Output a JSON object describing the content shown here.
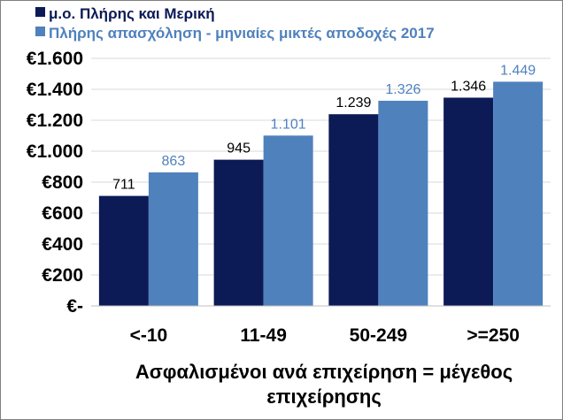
{
  "chart_data": {
    "type": "bar",
    "title": "",
    "xlabel_lines": [
      "Ασφαλισμένοι ανά επιχείρηση = μέγεθος",
      "επιχείρησης"
    ],
    "ylabel": "",
    "ylim": [
      0,
      1600
    ],
    "y_ticks": [
      0,
      200,
      400,
      600,
      800,
      1000,
      1200,
      1400,
      1600
    ],
    "y_tick_labels": [
      "€-",
      "€200",
      "€400",
      "€600",
      "€800",
      "€1.000",
      "€1.200",
      "€1.400",
      "€1.600"
    ],
    "grid": true,
    "legend_position": "top-left",
    "categories": [
      "<-10",
      "11-49",
      "50-249",
      ">=250"
    ],
    "series": [
      {
        "name": "μ.ο. Πλήρης και Μερική",
        "color": "#0c1a56",
        "label_color": "#000000",
        "values": [
          711,
          945,
          1239,
          1346
        ],
        "labels": [
          "711",
          "945",
          "1.239",
          "1.346"
        ]
      },
      {
        "name": "Πλήρης απασχόληση - μηνιαίες μικτές αποδοχές 2017",
        "color": "#4f81bd",
        "label_color": "#4f81bd",
        "values": [
          863,
          1101,
          1326,
          1449
        ],
        "labels": [
          "863",
          "1.101",
          "1.326",
          "1.449"
        ]
      }
    ]
  }
}
